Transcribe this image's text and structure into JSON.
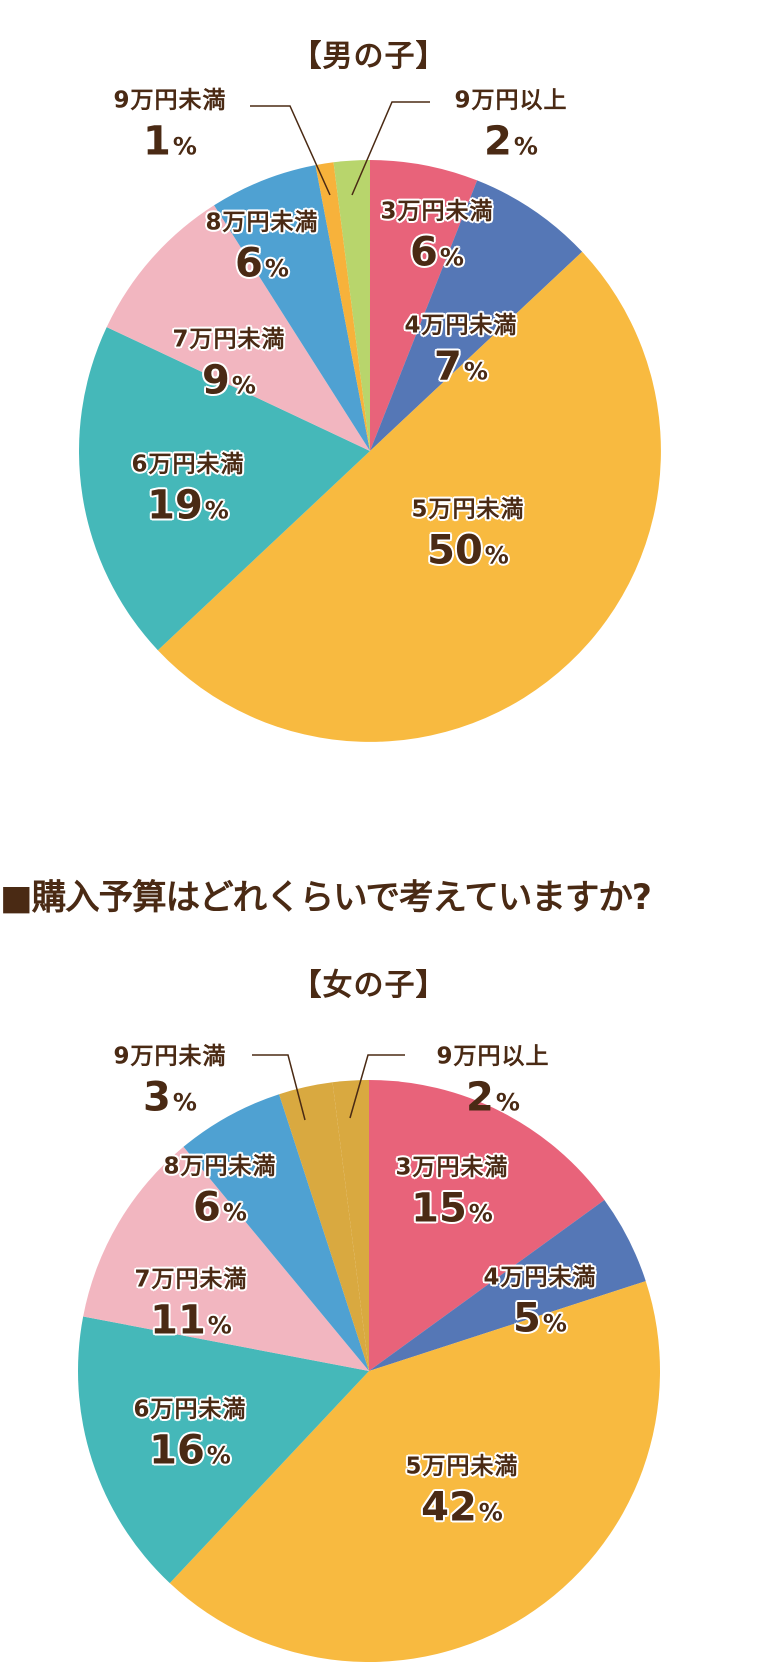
{
  "heading": "■購入予算はどれくらいで考えていますか?",
  "text_color": "#4a2a14",
  "chart_data": [
    {
      "type": "pie",
      "title": "【男の子】",
      "question": "購入予算はどれくらいで考えていますか?",
      "unit": "%",
      "start_angle": "12 o'clock, clockwise",
      "categories": [
        "3万円未満",
        "4万円未満",
        "5万円未満",
        "6万円未満",
        "7万円未満",
        "8万円未満",
        "9万円未満",
        "9万円以上"
      ],
      "values": [
        6,
        7,
        50,
        19,
        9,
        6,
        1,
        2
      ],
      "colors": [
        "#e8637a",
        "#5577b6",
        "#f8ba40",
        "#45b8b9",
        "#f2b6c0",
        "#4fa1d2",
        "#f7b23b",
        "#b8d56c"
      ]
    },
    {
      "type": "pie",
      "title": "【女の子】",
      "question": "購入予算はどれくらいで考えていますか?",
      "unit": "%",
      "start_angle": "12 o'clock, clockwise",
      "categories": [
        "3万円未満",
        "4万円未満",
        "5万円未満",
        "6万円未満",
        "7万円未満",
        "8万円未満",
        "9万円未満",
        "9万円以上"
      ],
      "values": [
        15,
        5,
        42,
        16,
        11,
        6,
        3,
        2
      ],
      "colors": [
        "#e8637a",
        "#5577b6",
        "#f8ba40",
        "#45b8b9",
        "#f2b6c0",
        "#4fa1d2",
        "#d9a940",
        "#d9a940"
      ]
    }
  ],
  "boy_chart": {
    "title": "【男の子】",
    "labels": [
      {
        "category": "3万円未満",
        "value": "6",
        "unit": "%"
      },
      {
        "category": "4万円未満",
        "value": "7",
        "unit": "%"
      },
      {
        "category": "5万円未満",
        "value": "50",
        "unit": "%"
      },
      {
        "category": "6万円未満",
        "value": "19",
        "unit": "%"
      },
      {
        "category": "7万円未満",
        "value": "9",
        "unit": "%"
      },
      {
        "category": "8万円未満",
        "value": "6",
        "unit": "%"
      },
      {
        "category": "9万円未満",
        "value": "1",
        "unit": "%"
      },
      {
        "category": "9万円以上",
        "value": "2",
        "unit": "%"
      }
    ]
  },
  "girl_chart": {
    "title": "【女の子】",
    "labels": [
      {
        "category": "3万円未満",
        "value": "15",
        "unit": "%"
      },
      {
        "category": "4万円未満",
        "value": "5",
        "unit": "%"
      },
      {
        "category": "5万円未満",
        "value": "42",
        "unit": "%"
      },
      {
        "category": "6万円未満",
        "value": "16",
        "unit": "%"
      },
      {
        "category": "7万円未満",
        "value": "11",
        "unit": "%"
      },
      {
        "category": "8万円未満",
        "value": "6",
        "unit": "%"
      },
      {
        "category": "9万円未満",
        "value": "3",
        "unit": "%"
      },
      {
        "category": "9万円以上",
        "value": "2",
        "unit": "%"
      }
    ]
  }
}
